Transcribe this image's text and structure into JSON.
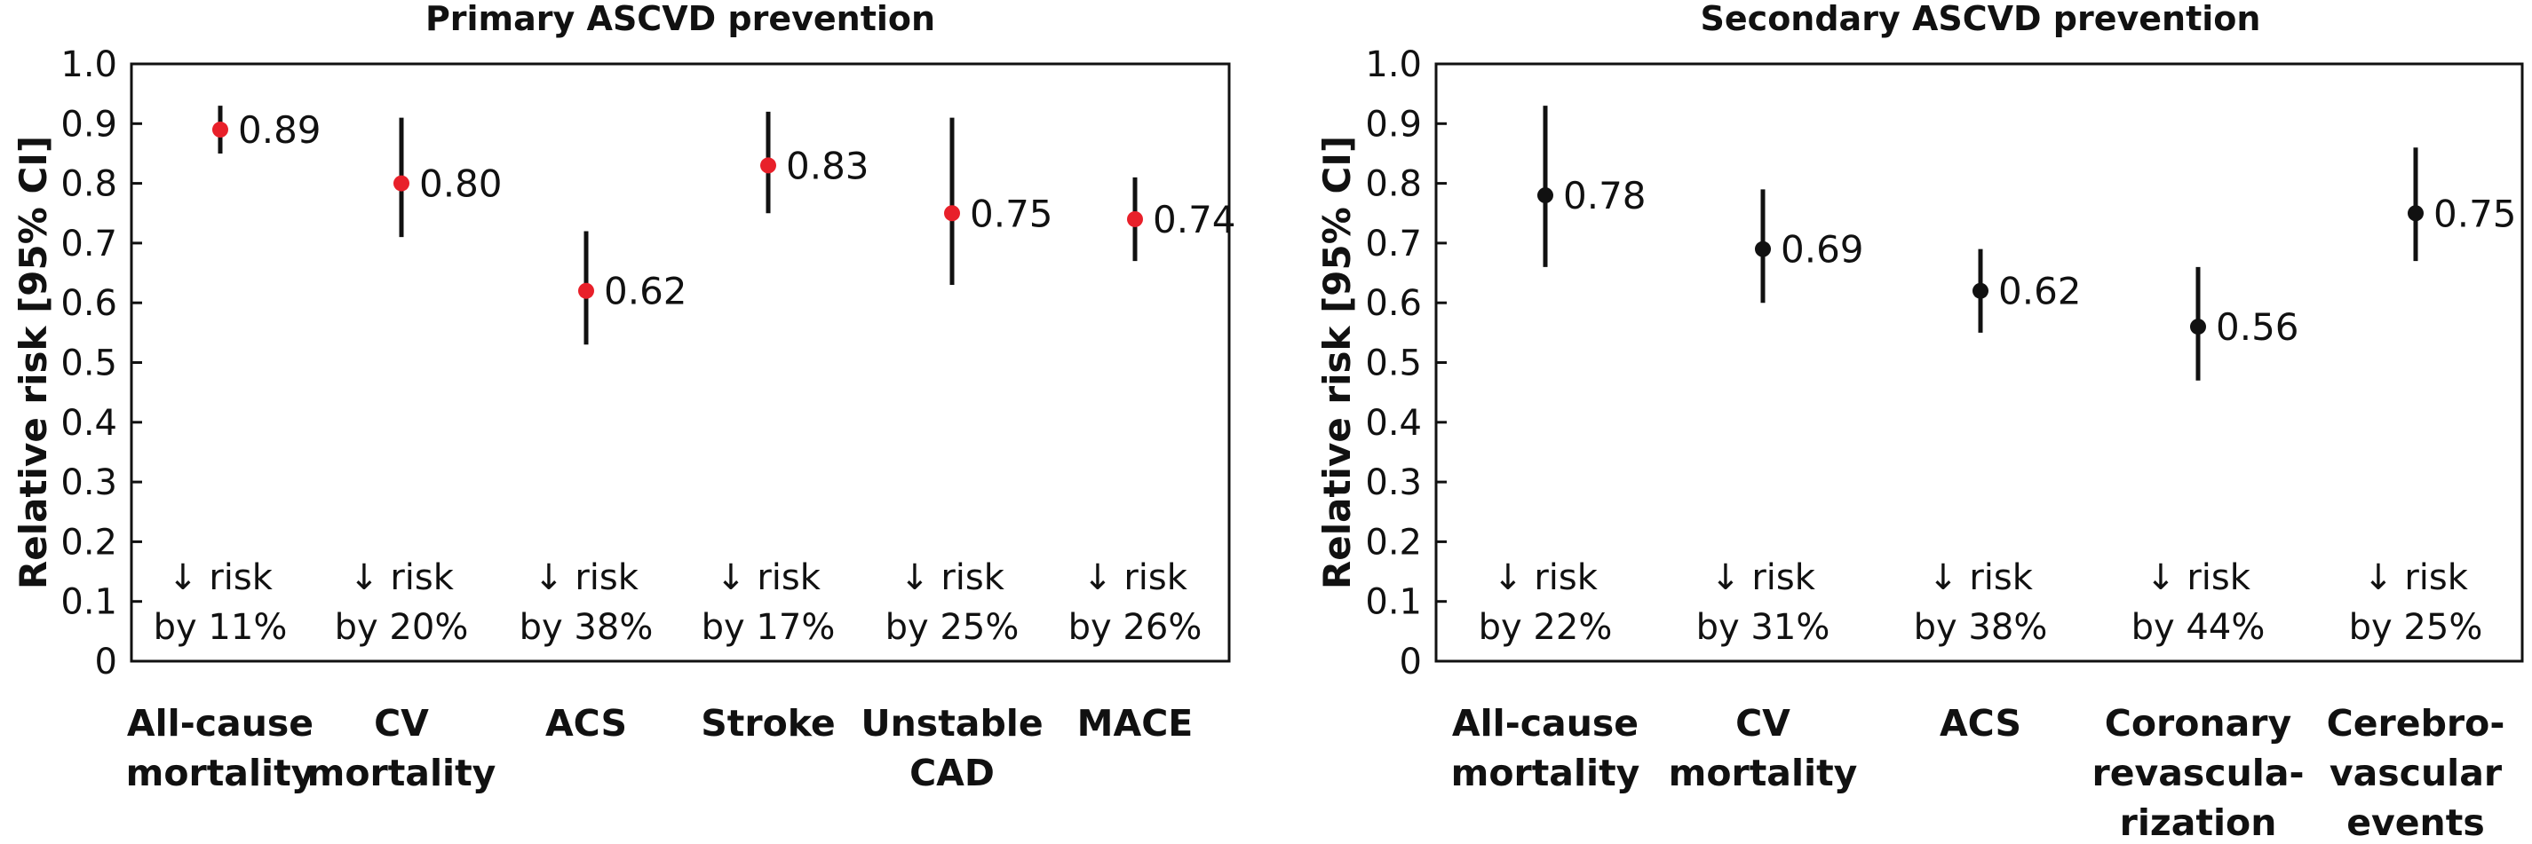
{
  "chart_data": [
    {
      "type": "scatter",
      "subtype": "point-estimate with 95% CI",
      "title": "Primary ASCVD prevention",
      "ylabel": "Relative risk [95% CI]",
      "ylim": [
        0,
        1.0
      ],
      "yticks": [
        "0",
        "0.1",
        "0.2",
        "0.3",
        "0.4",
        "0.5",
        "0.6",
        "0.7",
        "0.8",
        "0.9",
        "1.0"
      ],
      "grid": false,
      "marker_color": "#e8202a",
      "categories": [
        [
          "All-cause",
          "mortality"
        ],
        [
          "CV",
          "mortality"
        ],
        [
          "ACS"
        ],
        [
          "Stroke"
        ],
        [
          "Unstable",
          "CAD"
        ],
        [
          "MACE"
        ]
      ],
      "values": [
        0.89,
        0.8,
        0.62,
        0.83,
        0.75,
        0.74
      ],
      "value_labels": [
        "0.89",
        "0.80",
        "0.62",
        "0.83",
        "0.75",
        "0.74"
      ],
      "ci_low": [
        0.85,
        0.71,
        0.53,
        0.75,
        0.63,
        0.67
      ],
      "ci_high": [
        0.93,
        0.91,
        0.72,
        0.92,
        0.91,
        0.81
      ],
      "notes": [
        [
          "↓ risk",
          "by 11%"
        ],
        [
          "↓ risk",
          "by 20%"
        ],
        [
          "↓ risk",
          "by 38%"
        ],
        [
          "↓ risk",
          "by 17%"
        ],
        [
          "↓ risk",
          "by 25%"
        ],
        [
          "↓ risk",
          "by 26%"
        ]
      ]
    },
    {
      "type": "scatter",
      "subtype": "point-estimate with 95% CI",
      "title": "Secondary ASCVD prevention",
      "ylabel": "Relative risk [95% CI]",
      "ylim": [
        0,
        1.0
      ],
      "yticks": [
        "0",
        "0.1",
        "0.2",
        "0.3",
        "0.4",
        "0.5",
        "0.6",
        "0.7",
        "0.8",
        "0.9",
        "1.0"
      ],
      "grid": false,
      "marker_color": "#111111",
      "categories": [
        [
          "All-cause",
          "mortality"
        ],
        [
          "CV",
          "mortality"
        ],
        [
          "ACS"
        ],
        [
          "Coronary",
          "revasculа-",
          "rization"
        ],
        [
          "Cerebro-",
          "vascular",
          "events"
        ]
      ],
      "values": [
        0.78,
        0.69,
        0.62,
        0.56,
        0.75
      ],
      "value_labels": [
        "0.78",
        "0.69",
        "0.62",
        "0.56",
        "0.75"
      ],
      "ci_low": [
        0.66,
        0.6,
        0.55,
        0.47,
        0.67
      ],
      "ci_high": [
        0.93,
        0.79,
        0.69,
        0.66,
        0.86
      ],
      "notes": [
        [
          "↓ risk",
          "by 22%"
        ],
        [
          "↓ risk",
          "by 31%"
        ],
        [
          "↓ risk",
          "by 38%"
        ],
        [
          "↓ risk",
          "by 44%"
        ],
        [
          "↓ risk",
          "by 25%"
        ]
      ]
    }
  ]
}
